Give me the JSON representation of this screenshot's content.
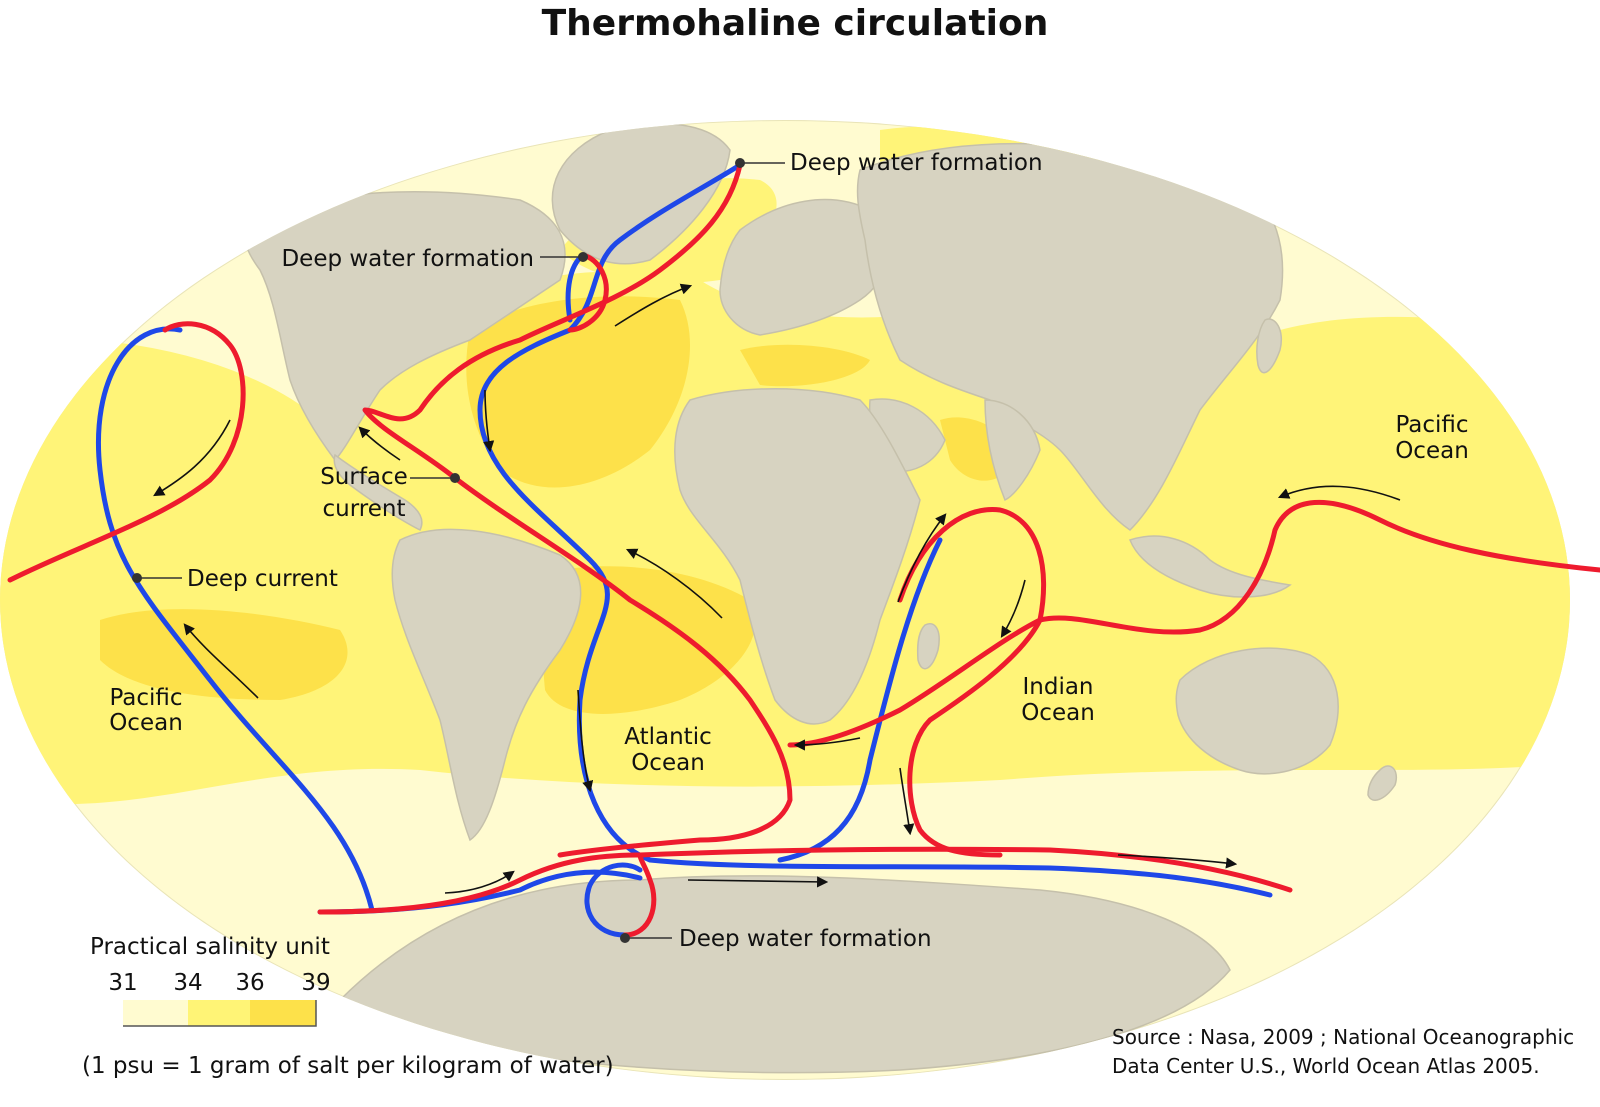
{
  "title": "Thermohaline circulation",
  "labels": {
    "deep_water_formation_north": "Deep water formation",
    "deep_water_formation_labrador": "Deep water formation",
    "deep_water_formation_south": "Deep water formation",
    "surface_current_line1": "Surface",
    "surface_current_line2": "current",
    "deep_current": "Deep current",
    "pacific_west_line1": "Pacific",
    "pacific_west_line2": "Ocean",
    "pacific_east_line1": "Pacific",
    "pacific_east_line2": "Ocean",
    "atlantic_line1": "Atlantic",
    "atlantic_line2": "Ocean",
    "indian_line1": "Indian",
    "indian_line2": "Ocean"
  },
  "legend": {
    "title": "Practical salinity unit",
    "ticks": [
      "31",
      "34",
      "36",
      "39"
    ],
    "colors": [
      "#fffbd0",
      "#fff476",
      "#fde14a"
    ],
    "note": "(1 psu = 1 gram of salt per kilogram of water)"
  },
  "source": {
    "line1": "Source : Nasa, 2009 ; National Oceanographic",
    "line2": "Data Center U.S., World Ocean Atlas 2005."
  },
  "colors": {
    "ocean_low": "#fffbd0",
    "ocean_mid": "#fff478",
    "ocean_high": "#fde14a",
    "land": "#d7d3c1",
    "surface_current": "#ee1b2e",
    "deep_current": "#1f48e8",
    "marker": "#333333"
  }
}
